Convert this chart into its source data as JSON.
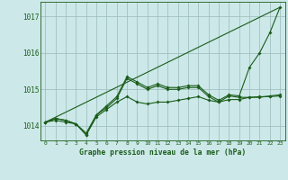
{
  "background_color": "#cce8e8",
  "plot_bg_color": "#cce8e8",
  "grid_color": "#99bbbb",
  "line_color": "#1a5c1a",
  "title": "Graphe pression niveau de la mer (hPa)",
  "xlim": [
    -0.5,
    23.5
  ],
  "ylim": [
    1013.6,
    1017.4
  ],
  "yticks": [
    1014,
    1015,
    1016,
    1017
  ],
  "xticks": [
    0,
    1,
    2,
    3,
    4,
    5,
    6,
    7,
    8,
    9,
    10,
    11,
    12,
    13,
    14,
    15,
    16,
    17,
    18,
    19,
    20,
    21,
    22,
    23
  ],
  "series": [
    {
      "x": [
        0,
        23
      ],
      "y": [
        1014.1,
        1017.25
      ],
      "markers": false
    },
    {
      "x": [
        0,
        1,
        2,
        3,
        4,
        5,
        6,
        7,
        8,
        9,
        10,
        11,
        12,
        13,
        14,
        15,
        16,
        17,
        18,
        19,
        20,
        21,
        22,
        23
      ],
      "y": [
        1014.1,
        1014.2,
        1014.15,
        1014.05,
        1013.75,
        1014.3,
        1014.55,
        1014.8,
        1015.35,
        1015.2,
        1015.05,
        1015.15,
        1015.05,
        1015.05,
        1015.1,
        1015.1,
        1014.85,
        1014.7,
        1014.85,
        1014.82,
        1015.6,
        1016.0,
        1016.55,
        1017.25
      ],
      "markers": true
    },
    {
      "x": [
        0,
        1,
        2,
        3,
        4,
        5,
        6,
        7,
        8,
        9,
        10,
        11,
        12,
        13,
        14,
        15,
        16,
        17,
        18,
        19,
        20,
        21,
        22,
        23
      ],
      "y": [
        1014.1,
        1014.2,
        1014.15,
        1014.05,
        1013.75,
        1014.25,
        1014.45,
        1014.65,
        1014.8,
        1014.65,
        1014.6,
        1014.65,
        1014.65,
        1014.7,
        1014.75,
        1014.8,
        1014.7,
        1014.65,
        1014.72,
        1014.72,
        1014.78,
        1014.8,
        1014.8,
        1014.82
      ],
      "markers": true
    },
    {
      "x": [
        0,
        1,
        2,
        3,
        4,
        5,
        6,
        7,
        8,
        9,
        10,
        11,
        12,
        13,
        14,
        15,
        16,
        17,
        18,
        19,
        20,
        21,
        22,
        23
      ],
      "y": [
        1014.1,
        1014.15,
        1014.1,
        1014.05,
        1013.8,
        1014.3,
        1014.5,
        1014.75,
        1015.3,
        1015.15,
        1015.0,
        1015.1,
        1015.0,
        1015.0,
        1015.05,
        1015.05,
        1014.8,
        1014.65,
        1014.82,
        1014.78,
        1014.78,
        1014.78,
        1014.82,
        1014.85
      ],
      "markers": true
    }
  ]
}
